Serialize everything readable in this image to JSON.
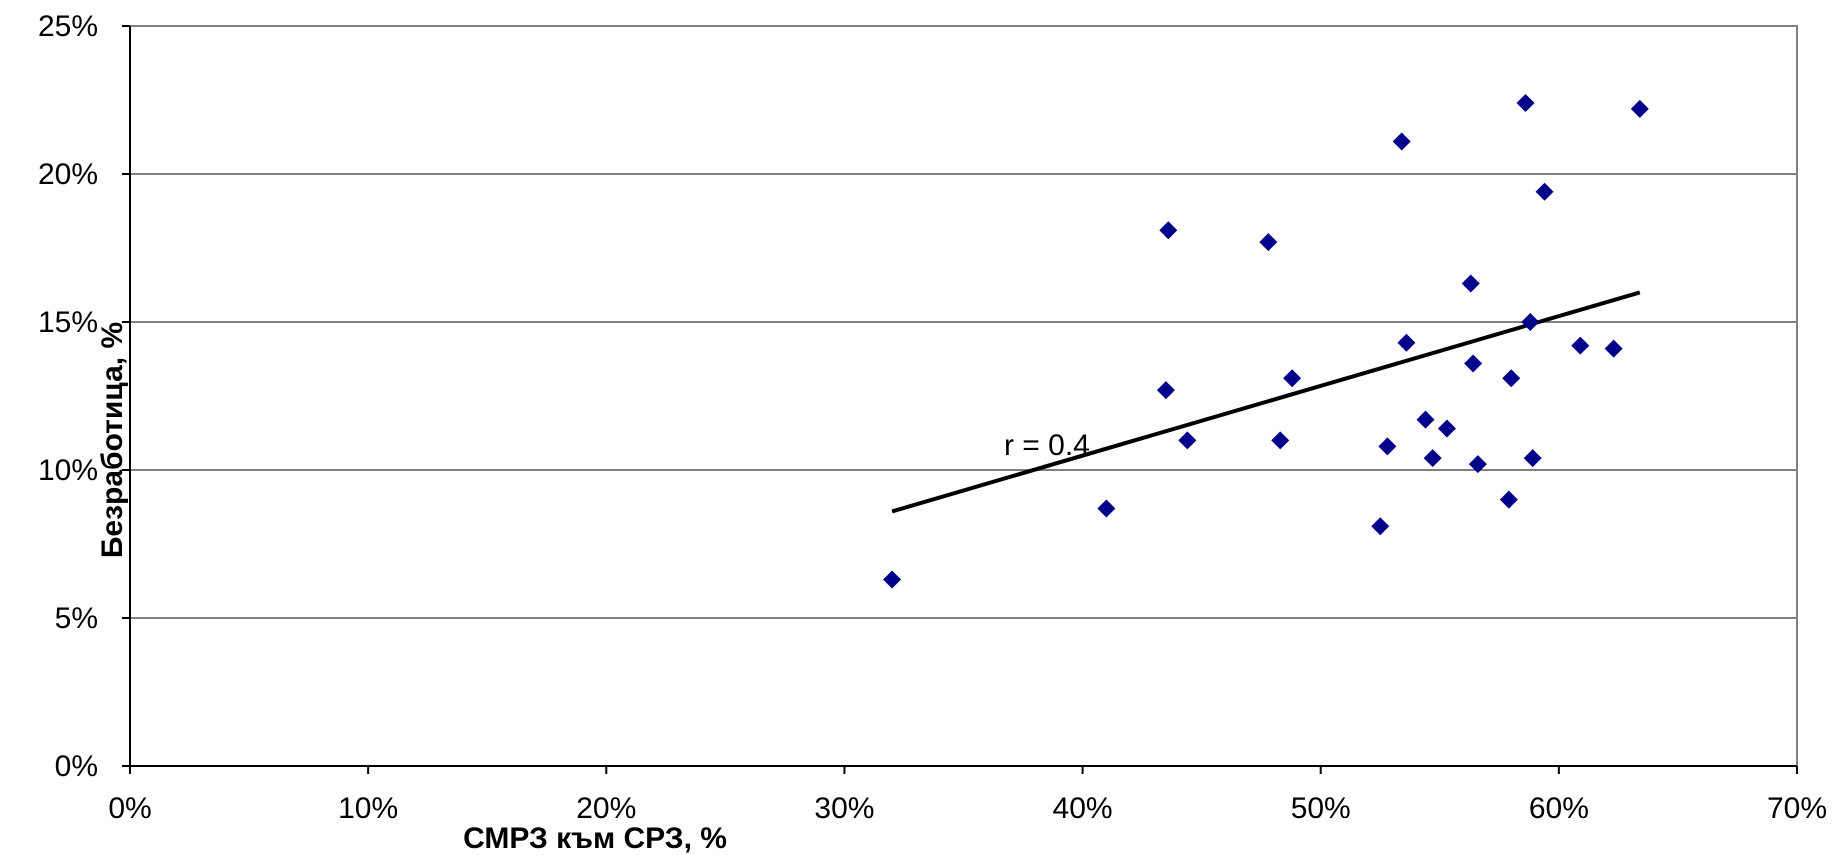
{
  "chart_data": {
    "type": "scatter",
    "title": "",
    "xlabel": "СМРЗ към СРЗ, %",
    "ylabel": "Безработица, %",
    "xlim": [
      0,
      0.7
    ],
    "ylim": [
      0,
      0.25
    ],
    "x_ticks": [
      {
        "value": 0.0,
        "label": "0%"
      },
      {
        "value": 0.1,
        "label": "10%"
      },
      {
        "value": 0.2,
        "label": "20%"
      },
      {
        "value": 0.3,
        "label": "30%"
      },
      {
        "value": 0.4,
        "label": "40%"
      },
      {
        "value": 0.5,
        "label": "50%"
      },
      {
        "value": 0.6,
        "label": "60%"
      },
      {
        "value": 0.7,
        "label": "70%"
      }
    ],
    "y_ticks": [
      {
        "value": 0.0,
        "label": "0%"
      },
      {
        "value": 0.05,
        "label": "5%"
      },
      {
        "value": 0.1,
        "label": "10%"
      },
      {
        "value": 0.15,
        "label": "15%"
      },
      {
        "value": 0.2,
        "label": "20%"
      },
      {
        "value": 0.25,
        "label": "25%"
      }
    ],
    "grid": "horizontal",
    "legend": "none",
    "marker": "diamond",
    "marker_color": "#00008B",
    "series": [
      {
        "points": [
          {
            "x": 0.32,
            "y": 0.063
          },
          {
            "x": 0.41,
            "y": 0.087
          },
          {
            "x": 0.435,
            "y": 0.127
          },
          {
            "x": 0.436,
            "y": 0.181
          },
          {
            "x": 0.444,
            "y": 0.11
          },
          {
            "x": 0.478,
            "y": 0.177
          },
          {
            "x": 0.483,
            "y": 0.11
          },
          {
            "x": 0.488,
            "y": 0.131
          },
          {
            "x": 0.525,
            "y": 0.081
          },
          {
            "x": 0.528,
            "y": 0.108
          },
          {
            "x": 0.534,
            "y": 0.211
          },
          {
            "x": 0.536,
            "y": 0.143
          },
          {
            "x": 0.544,
            "y": 0.117
          },
          {
            "x": 0.547,
            "y": 0.104
          },
          {
            "x": 0.553,
            "y": 0.114
          },
          {
            "x": 0.563,
            "y": 0.163
          },
          {
            "x": 0.564,
            "y": 0.136
          },
          {
            "x": 0.566,
            "y": 0.102
          },
          {
            "x": 0.579,
            "y": 0.09
          },
          {
            "x": 0.58,
            "y": 0.131
          },
          {
            "x": 0.586,
            "y": 0.224
          },
          {
            "x": 0.588,
            "y": 0.15
          },
          {
            "x": 0.589,
            "y": 0.104
          },
          {
            "x": 0.594,
            "y": 0.194
          },
          {
            "x": 0.609,
            "y": 0.142
          },
          {
            "x": 0.623,
            "y": 0.141
          },
          {
            "x": 0.634,
            "y": 0.222
          }
        ]
      }
    ],
    "trendline": {
      "x": [
        0.32,
        0.634
      ],
      "y": [
        0.086,
        0.16
      ],
      "color": "#000000"
    },
    "annotations": [
      {
        "text": "r = 0.4",
        "x": 0.367,
        "y": 0.105
      }
    ]
  }
}
